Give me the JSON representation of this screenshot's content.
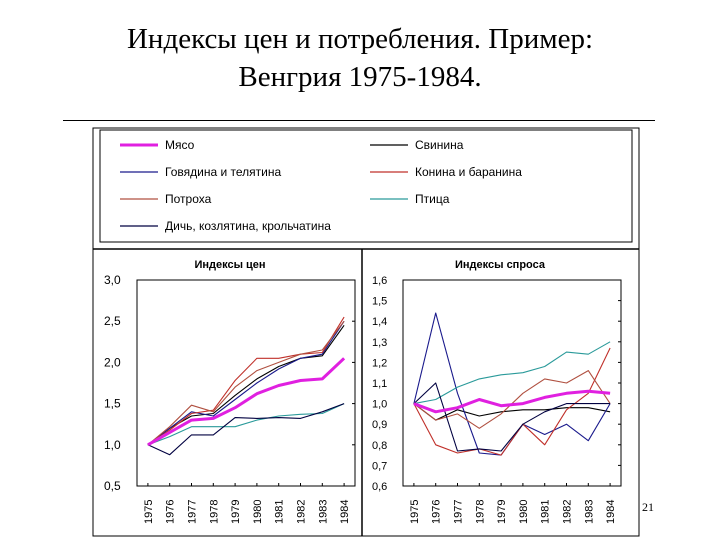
{
  "slide": {
    "title_line1": "Индексы цен и потребления. Пример:",
    "title_line2": "Венгрия 1975-1984.",
    "page_number": "21"
  },
  "legend": [
    {
      "name": "Мясо",
      "color": "#e020e0",
      "thick": true
    },
    {
      "name": "Свинина",
      "color": "#000000",
      "thick": false
    },
    {
      "name": "Говядина и телятина",
      "color": "#1a1a8c",
      "thick": false
    },
    {
      "name": "Конина и баранина",
      "color": "#c0302a",
      "thick": false
    },
    {
      "name": "Потроха",
      "color": "#b05040",
      "thick": false
    },
    {
      "name": "Птица",
      "color": "#2a9a9a",
      "thick": false
    },
    {
      "name": "Дичь, козлятина, крольчатина",
      "color": "#000040",
      "thick": false
    }
  ],
  "chart_data": [
    {
      "type": "line",
      "title": "Индексы цен",
      "x": [
        "1975",
        "1976",
        "1977",
        "1978",
        "1979",
        "1980",
        "1981",
        "1982",
        "1983",
        "1984"
      ],
      "ylim": [
        0.5,
        3.0
      ],
      "yticks": [
        "3,0",
        "2,5",
        "2,0",
        "1,5",
        "1,0",
        "0,5"
      ],
      "series": [
        {
          "name": "Мясо",
          "color": "#e020e0",
          "values": [
            1.0,
            1.15,
            1.3,
            1.32,
            1.45,
            1.62,
            1.72,
            1.78,
            1.8,
            2.05
          ]
        },
        {
          "name": "Свинина",
          "color": "#000000",
          "values": [
            1.0,
            1.2,
            1.35,
            1.38,
            1.6,
            1.8,
            1.95,
            2.05,
            2.08,
            2.45
          ]
        },
        {
          "name": "Говядина и телятина",
          "color": "#1a1a8c",
          "values": [
            1.0,
            1.2,
            1.4,
            1.35,
            1.55,
            1.75,
            1.92,
            2.05,
            2.1,
            2.5
          ]
        },
        {
          "name": "Конина и баранина",
          "color": "#c0302a",
          "values": [
            1.0,
            1.18,
            1.38,
            1.42,
            1.78,
            2.05,
            2.05,
            2.1,
            2.12,
            2.55
          ]
        },
        {
          "name": "Потроха",
          "color": "#b05040",
          "values": [
            1.0,
            1.22,
            1.48,
            1.4,
            1.7,
            1.9,
            2.0,
            2.1,
            2.15,
            2.5
          ]
        },
        {
          "name": "Птица",
          "color": "#2a9a9a",
          "values": [
            1.0,
            1.1,
            1.22,
            1.22,
            1.22,
            1.3,
            1.35,
            1.37,
            1.38,
            1.5
          ]
        },
        {
          "name": "Дичь, козлятина, крольчатина",
          "color": "#000040",
          "values": [
            1.0,
            0.88,
            1.12,
            1.12,
            1.33,
            1.32,
            1.33,
            1.32,
            1.4,
            1.5
          ]
        }
      ]
    },
    {
      "type": "line",
      "title": "Индексы спроса",
      "x": [
        "1975",
        "1976",
        "1977",
        "1978",
        "1979",
        "1980",
        "1981",
        "1982",
        "1983",
        "1984"
      ],
      "ylim": [
        0.6,
        1.6
      ],
      "yticks": [
        "1,6",
        "1,5",
        "1,4",
        "1,3",
        "1,2",
        "1,1",
        "1,0",
        "0,9",
        "0,8",
        "0,7",
        "0,6"
      ],
      "series": [
        {
          "name": "Мясо",
          "color": "#e020e0",
          "values": [
            1.0,
            0.96,
            0.98,
            1.02,
            0.99,
            1.0,
            1.03,
            1.05,
            1.06,
            1.05
          ]
        },
        {
          "name": "Свинина",
          "color": "#000000",
          "values": [
            1.0,
            0.92,
            0.97,
            0.94,
            0.96,
            0.97,
            0.97,
            0.98,
            0.98,
            0.96
          ]
        },
        {
          "name": "Говядина и телятина",
          "color": "#1a1a8c",
          "values": [
            1.0,
            1.44,
            1.05,
            0.76,
            0.75,
            0.9,
            0.85,
            0.9,
            0.82,
            1.0
          ]
        },
        {
          "name": "Конина и баранина",
          "color": "#c0302a",
          "values": [
            1.0,
            0.8,
            0.76,
            0.78,
            0.75,
            0.9,
            0.8,
            0.97,
            1.05,
            1.27
          ]
        },
        {
          "name": "Потроха",
          "color": "#b05040",
          "values": [
            1.0,
            0.92,
            0.95,
            0.88,
            0.95,
            1.05,
            1.12,
            1.1,
            1.16,
            1.0
          ]
        },
        {
          "name": "Птица",
          "color": "#2a9a9a",
          "values": [
            1.0,
            1.02,
            1.08,
            1.12,
            1.14,
            1.15,
            1.18,
            1.25,
            1.24,
            1.3
          ]
        },
        {
          "name": "Дичь, козлятина, крольчатина",
          "color": "#000040",
          "values": [
            1.0,
            1.1,
            0.77,
            0.78,
            0.77,
            0.9,
            0.96,
            1.0,
            1.0,
            1.0
          ]
        }
      ]
    }
  ]
}
